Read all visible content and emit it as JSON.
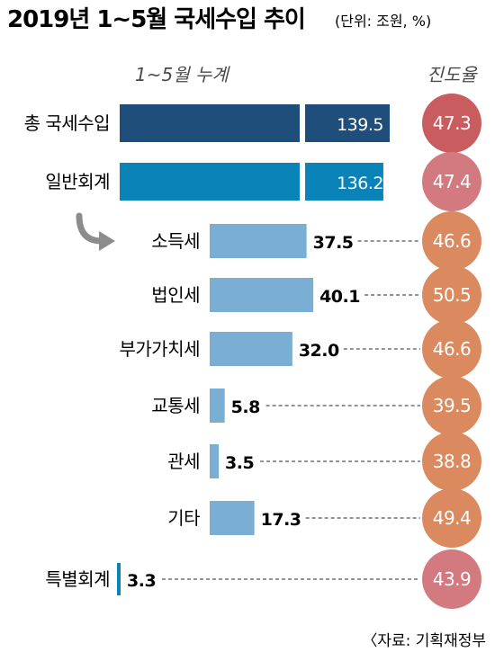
{
  "title": "2019년 1~5월 국세수입 추이",
  "unit_note": "(단위: 조원, %)",
  "source": "〈자료: 기획재정부",
  "chart_data": {
    "type": "bar",
    "orientation": "horizontal",
    "title": "2019년 1~5월 국세수입 추이",
    "value_label": "1~5월 누계",
    "rate_label": "진도율",
    "categories": [
      "총 국세수입",
      "일반회계",
      "소득세",
      "법인세",
      "부가가치세",
      "교통세",
      "관세",
      "기타",
      "특별회계"
    ],
    "values": [
      139.5,
      136.2,
      37.5,
      40.1,
      32.0,
      5.8,
      3.5,
      17.3,
      3.3
    ],
    "value_labels": [
      "139.5",
      "136.2",
      "37.5",
      "40.1",
      "32.0",
      "5.8",
      "3.5",
      "17.3",
      "3.3"
    ],
    "rates": [
      47.3,
      47.4,
      46.6,
      50.5,
      46.6,
      39.5,
      38.8,
      49.4,
      43.9
    ],
    "rate_labels": [
      "47.3",
      "47.4",
      "46.6",
      "50.5",
      "46.6",
      "39.5",
      "38.8",
      "49.4",
      "43.9"
    ],
    "colors": {
      "total_bar": "#1e4e79",
      "general_bar": "#0a83b8",
      "sub_bar": "#7aaed3",
      "special_bar": "#0a83b8",
      "rate_total": "#c85c5f",
      "rate_general": "#d37a80",
      "rate_sub": "#db8a5f",
      "rate_special": "#d37a80"
    }
  }
}
